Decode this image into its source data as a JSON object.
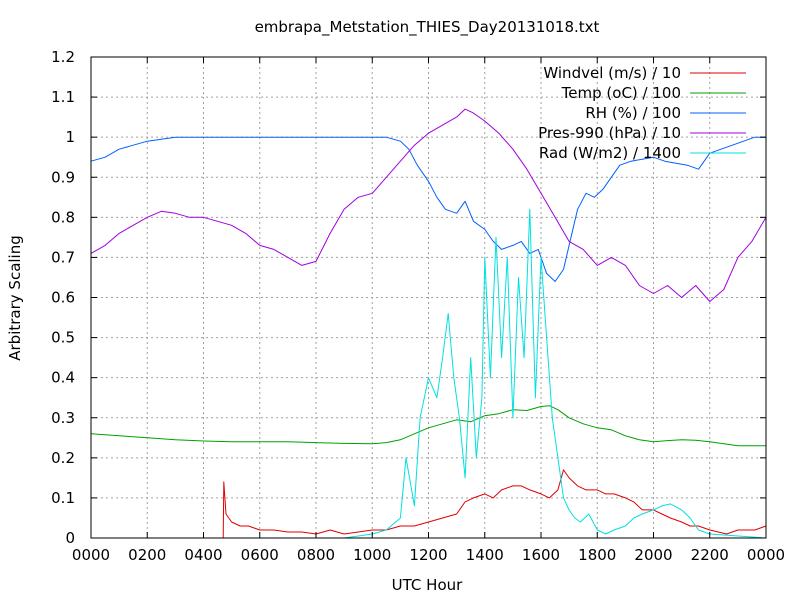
{
  "chart_data": {
    "type": "line",
    "title": "embrapa_Metstation_THIES_Day20131018.txt",
    "xlabel": "UTC Hour",
    "ylabel": "Arbitrary Scaling",
    "xlim": [
      0,
      24
    ],
    "ylim": [
      0,
      1.2
    ],
    "grid": true,
    "legend_position": "top-right",
    "x_ticks": [
      {
        "value": 0,
        "label": "0000"
      },
      {
        "value": 2,
        "label": "0200"
      },
      {
        "value": 4,
        "label": "0400"
      },
      {
        "value": 6,
        "label": "0600"
      },
      {
        "value": 8,
        "label": "0800"
      },
      {
        "value": 10,
        "label": "1000"
      },
      {
        "value": 12,
        "label": "1200"
      },
      {
        "value": 14,
        "label": "1400"
      },
      {
        "value": 16,
        "label": "1600"
      },
      {
        "value": 18,
        "label": "1800"
      },
      {
        "value": 20,
        "label": "2000"
      },
      {
        "value": 22,
        "label": "2200"
      },
      {
        "value": 24,
        "label": "0000"
      }
    ],
    "y_ticks": [
      {
        "value": 0,
        "label": "0"
      },
      {
        "value": 0.1,
        "label": "0.1"
      },
      {
        "value": 0.2,
        "label": "0.2"
      },
      {
        "value": 0.3,
        "label": "0.3"
      },
      {
        "value": 0.4,
        "label": "0.4"
      },
      {
        "value": 0.5,
        "label": "0.5"
      },
      {
        "value": 0.6,
        "label": "0.6"
      },
      {
        "value": 0.7,
        "label": "0.7"
      },
      {
        "value": 0.8,
        "label": "0.8"
      },
      {
        "value": 0.9,
        "label": "0.9"
      },
      {
        "value": 1.0,
        "label": "1"
      },
      {
        "value": 1.1,
        "label": "1.1"
      },
      {
        "value": 1.2,
        "label": "1.2"
      }
    ],
    "series": [
      {
        "name": "Windvel (m/s) / 10",
        "color": "#e00000",
        "x": [
          0,
          4.7,
          4.72,
          4.8,
          5.0,
          5.3,
          5.6,
          6.0,
          6.5,
          7.0,
          7.5,
          8.0,
          8.5,
          9.0,
          9.5,
          10.0,
          10.5,
          11.0,
          11.5,
          12.0,
          12.5,
          13.0,
          13.3,
          13.6,
          14.0,
          14.3,
          14.6,
          15.0,
          15.3,
          15.6,
          16.0,
          16.3,
          16.6,
          16.8,
          17.0,
          17.3,
          17.6,
          18.0,
          18.3,
          18.6,
          19.0,
          19.3,
          19.6,
          20.0,
          20.3,
          20.6,
          21.0,
          21.3,
          21.6,
          22.0,
          22.3,
          22.6,
          23.0,
          23.3,
          23.6,
          24.0
        ],
        "y": [
          0.0,
          0.0,
          0.14,
          0.06,
          0.04,
          0.03,
          0.03,
          0.02,
          0.02,
          0.015,
          0.015,
          0.01,
          0.02,
          0.01,
          0.015,
          0.02,
          0.02,
          0.03,
          0.03,
          0.04,
          0.05,
          0.06,
          0.09,
          0.1,
          0.11,
          0.1,
          0.12,
          0.13,
          0.13,
          0.12,
          0.11,
          0.1,
          0.12,
          0.17,
          0.15,
          0.13,
          0.12,
          0.12,
          0.11,
          0.11,
          0.1,
          0.09,
          0.07,
          0.07,
          0.06,
          0.05,
          0.04,
          0.03,
          0.03,
          0.02,
          0.015,
          0.01,
          0.02,
          0.02,
          0.02,
          0.03
        ]
      },
      {
        "name": "Temp (oC) / 100",
        "color": "#00a000",
        "x": [
          0,
          1,
          2,
          3,
          4,
          5,
          6,
          7,
          8,
          9,
          10,
          10.5,
          11,
          11.5,
          12,
          12.5,
          13,
          13.5,
          14,
          14.5,
          15,
          15.5,
          16,
          16.3,
          16.6,
          17,
          17.5,
          18,
          18.5,
          19,
          19.5,
          20,
          20.5,
          21,
          21.5,
          22,
          22.5,
          23,
          24
        ],
        "y": [
          0.26,
          0.255,
          0.25,
          0.245,
          0.242,
          0.24,
          0.24,
          0.24,
          0.238,
          0.236,
          0.235,
          0.238,
          0.245,
          0.26,
          0.275,
          0.285,
          0.295,
          0.29,
          0.305,
          0.31,
          0.32,
          0.318,
          0.328,
          0.33,
          0.32,
          0.3,
          0.285,
          0.275,
          0.27,
          0.255,
          0.245,
          0.24,
          0.243,
          0.245,
          0.244,
          0.24,
          0.235,
          0.23,
          0.23
        ]
      },
      {
        "name": "RH (%) / 100",
        "color": "#0060ff",
        "x": [
          0,
          0.5,
          1,
          1.5,
          2,
          2.5,
          3,
          4,
          5,
          6,
          7,
          8,
          9,
          10,
          10.5,
          11,
          11.3,
          11.6,
          12,
          12.3,
          12.6,
          13,
          13.3,
          13.6,
          14,
          14.3,
          14.6,
          15,
          15.3,
          15.6,
          15.9,
          16.2,
          16.5,
          16.8,
          17.0,
          17.3,
          17.6,
          17.9,
          18.2,
          18.5,
          18.8,
          19.2,
          19.6,
          20.0,
          20.4,
          20.8,
          21.2,
          21.6,
          22.0,
          22.4,
          22.8,
          23.2,
          23.6,
          24
        ],
        "y": [
          0.94,
          0.95,
          0.97,
          0.98,
          0.99,
          0.995,
          1.0,
          1.0,
          1.0,
          1.0,
          1.0,
          1.0,
          1.0,
          1.0,
          1.0,
          0.99,
          0.97,
          0.93,
          0.89,
          0.85,
          0.82,
          0.81,
          0.84,
          0.79,
          0.77,
          0.74,
          0.72,
          0.73,
          0.74,
          0.71,
          0.72,
          0.66,
          0.64,
          0.67,
          0.73,
          0.82,
          0.86,
          0.85,
          0.87,
          0.9,
          0.93,
          0.94,
          0.945,
          0.95,
          0.94,
          0.935,
          0.93,
          0.92,
          0.96,
          0.97,
          0.98,
          0.99,
          1.0,
          1.0
        ]
      },
      {
        "name": "Pres-990 (hPa) / 10",
        "color": "#a000e0",
        "x": [
          0,
          0.5,
          1,
          1.5,
          2,
          2.5,
          3,
          3.5,
          4,
          4.5,
          5,
          5.5,
          6,
          6.5,
          7,
          7.5,
          8,
          8.5,
          9,
          9.5,
          10,
          10.5,
          11,
          11.5,
          12,
          12.5,
          13,
          13.3,
          13.6,
          14,
          14.5,
          15,
          15.5,
          16,
          16.5,
          17,
          17.5,
          18,
          18.5,
          19,
          19.5,
          20,
          20.5,
          21,
          21.5,
          22,
          22.5,
          23,
          23.5,
          24
        ],
        "y": [
          0.71,
          0.73,
          0.76,
          0.78,
          0.8,
          0.815,
          0.81,
          0.8,
          0.8,
          0.79,
          0.78,
          0.76,
          0.73,
          0.72,
          0.7,
          0.68,
          0.69,
          0.76,
          0.82,
          0.85,
          0.86,
          0.9,
          0.94,
          0.98,
          1.01,
          1.03,
          1.05,
          1.07,
          1.06,
          1.04,
          1.01,
          0.97,
          0.92,
          0.86,
          0.8,
          0.74,
          0.72,
          0.68,
          0.7,
          0.68,
          0.63,
          0.61,
          0.63,
          0.6,
          0.63,
          0.59,
          0.62,
          0.7,
          0.74,
          0.8
        ]
      },
      {
        "name": "Rad (W/m2) / 1400",
        "color": "#00e0e0",
        "x": [
          0,
          9,
          10,
          10.5,
          11,
          11.2,
          11.5,
          11.7,
          12,
          12.3,
          12.5,
          12.7,
          12.9,
          13.1,
          13.3,
          13.5,
          13.7,
          13.9,
          14.0,
          14.2,
          14.4,
          14.6,
          14.8,
          15.0,
          15.2,
          15.4,
          15.6,
          15.8,
          16.0,
          16.2,
          16.4,
          16.6,
          16.8,
          17.0,
          17.2,
          17.4,
          17.7,
          18.0,
          18.3,
          18.6,
          19.0,
          19.3,
          19.6,
          20.0,
          20.3,
          20.6,
          21.0,
          21.3,
          21.6,
          22.0,
          24
        ],
        "y": [
          0.0,
          0.0,
          0.01,
          0.02,
          0.05,
          0.2,
          0.08,
          0.3,
          0.4,
          0.35,
          0.45,
          0.56,
          0.4,
          0.3,
          0.15,
          0.45,
          0.2,
          0.35,
          0.7,
          0.4,
          0.75,
          0.45,
          0.7,
          0.3,
          0.65,
          0.45,
          0.82,
          0.35,
          0.7,
          0.5,
          0.3,
          0.2,
          0.1,
          0.07,
          0.05,
          0.04,
          0.06,
          0.02,
          0.01,
          0.02,
          0.03,
          0.05,
          0.06,
          0.07,
          0.08,
          0.085,
          0.07,
          0.05,
          0.02,
          0.01,
          0.0
        ]
      }
    ]
  }
}
